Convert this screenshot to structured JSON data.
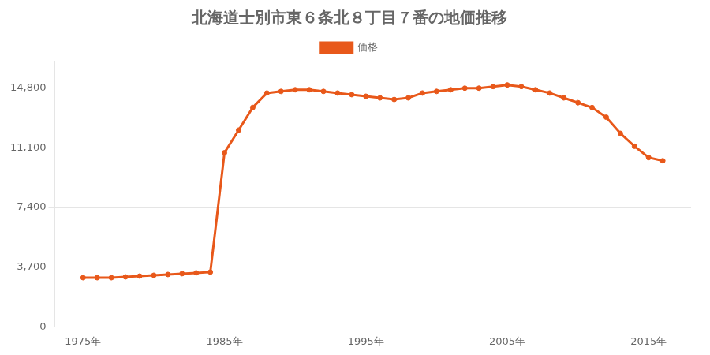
{
  "chart_data": {
    "type": "line",
    "title": "北海道士別市東６条北８丁目７番の地価推移",
    "x": [
      1975,
      1976,
      1977,
      1978,
      1979,
      1980,
      1981,
      1982,
      1983,
      1984,
      1985,
      1986,
      1987,
      1988,
      1989,
      1990,
      1991,
      1992,
      1993,
      1994,
      1995,
      1996,
      1997,
      1998,
      1999,
      2000,
      2001,
      2002,
      2003,
      2004,
      2005,
      2006,
      2007,
      2008,
      2009,
      2010,
      2011,
      2012,
      2013,
      2014,
      2015,
      2016
    ],
    "series": [
      {
        "name": "価格",
        "color": "#E8581A",
        "marker": "circle",
        "values": [
          3050,
          3050,
          3050,
          3100,
          3150,
          3200,
          3250,
          3300,
          3350,
          3400,
          10800,
          12200,
          13600,
          14500,
          14600,
          14700,
          14700,
          14600,
          14500,
          14400,
          14300,
          14200,
          14100,
          14200,
          14500,
          14600,
          14700,
          14800,
          14800,
          14900,
          15000,
          14900,
          14700,
          14500,
          14200,
          13900,
          13600,
          13000,
          12000,
          11200,
          10500,
          10300
        ]
      }
    ],
    "xlim": [
      1973,
      2018
    ],
    "xticks": [
      {
        "value": 1975,
        "label": "1975年"
      },
      {
        "value": 1985,
        "label": "1985年"
      },
      {
        "value": 1995,
        "label": "1995年"
      },
      {
        "value": 2005,
        "label": "2005年"
      },
      {
        "value": 2015,
        "label": "2015年"
      }
    ],
    "ylim": [
      0,
      16500
    ],
    "yticks": [
      0,
      {
        "value": 3700,
        "label": "3,700"
      },
      {
        "value": 7400,
        "label": "7,400"
      },
      {
        "value": 11100,
        "label": "11,100"
      },
      {
        "value": 14800,
        "label": "14,800"
      }
    ],
    "grid": "y",
    "legend": "top"
  }
}
